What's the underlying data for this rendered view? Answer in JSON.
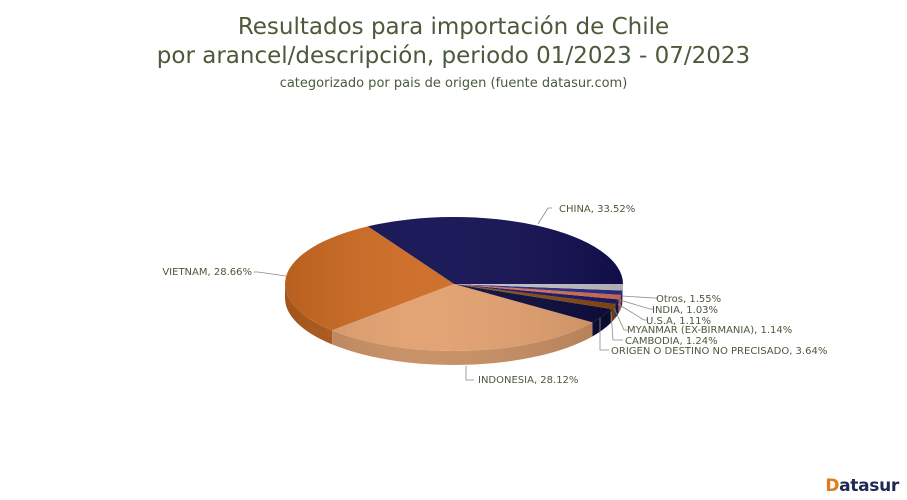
{
  "header": {
    "title_line1": "Resultados para importación de Chile",
    "title_line2": "por arancel/descripción, periodo 01/2023 - 07/2023",
    "subtitle": "categorizado por pais de origen (fuente datasur.com)"
  },
  "logo": {
    "mark": "D",
    "text": "atasur"
  },
  "chart_data": {
    "type": "pie",
    "style": "3d",
    "title": "Resultados para importación de Chile por arancel/descripción, periodo 01/2023 - 07/2023",
    "subtitle": "categorizado por pais de origen (fuente datasur.com)",
    "legend": "none (leader-line labels)",
    "slices": [
      {
        "label": "CHINA",
        "value": 33.52,
        "display": "CHINA, 33.52%",
        "color": "#120f52"
      },
      {
        "label": "VIETNAM",
        "value": 28.66,
        "display": "VIETNAM, 28.66%",
        "color": "#cc6a22"
      },
      {
        "label": "INDONESIA",
        "value": 28.12,
        "display": "INDONESIA, 28.12%",
        "color": "#e2a06e"
      },
      {
        "label": "ORIGEN O DESTINO NO PRECISADO",
        "value": 3.64,
        "display": "ORIGEN O DESTINO NO PRECISADO, 3.64%",
        "color": "#0c0b3c"
      },
      {
        "label": "CAMBODIA",
        "value": 1.24,
        "display": "CAMBODIA, 1.24%",
        "color": "#8a4a12"
      },
      {
        "label": "MYANMAR (EX-BIRMANIA)",
        "value": 1.14,
        "display": "MYANMAR (EX-BIRMANIA), 1.14%",
        "color": "#1c1a60"
      },
      {
        "label": "U.S.A",
        "value": 1.11,
        "display": "U.S.A, 1.11%",
        "color": "#d9705a"
      },
      {
        "label": "INDIA",
        "value": 1.03,
        "display": "INDIA, 1.03%",
        "color": "#2e2c88"
      },
      {
        "label": "Otros",
        "value": 1.55,
        "display": "Otros, 1.55%",
        "color": "#c4c4c8"
      }
    ]
  }
}
